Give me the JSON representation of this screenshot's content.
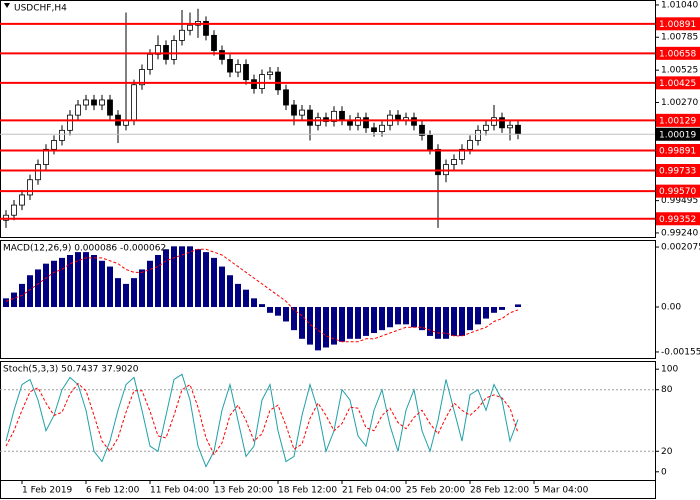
{
  "chart_data": [
    {
      "type": "candlestick",
      "title": "USDCHF,H4",
      "xlim": [
        -0.75,
        81.125
      ],
      "ylim": [
        0.99208,
        1.01079
      ],
      "yticks": [
        {
          "value": 1.0104,
          "label": "1.01040"
        },
        1.00785,
        1.00525,
        {
          "value": 1.0027,
          "label": "1.00270"
        },
        0.99495,
        {
          "value": 0.9924,
          "label": "0.99240"
        }
      ],
      "levels": [
        1.00891,
        1.00658,
        1.00425,
        1.00129,
        0.99891,
        0.99733,
        {
          "value": 0.9957,
          "label": "0.99570"
        },
        0.99352
      ],
      "level_color": "#ff0000",
      "current_price": 1.00019,
      "up_color": "#ffffff",
      "down_color": "#000000",
      "candles": [
        [
          0.9934,
          0.9942,
          0.9928,
          0.9938
        ],
        [
          0.9938,
          0.995,
          0.9934,
          0.9946
        ],
        [
          0.9946,
          0.9958,
          0.9942,
          0.9954
        ],
        [
          0.9954,
          0.997,
          0.995,
          0.9966
        ],
        [
          0.9966,
          0.9982,
          0.9962,
          0.9978
        ],
        [
          0.9978,
          0.9994,
          0.9974,
          0.999
        ],
        [
          0.999,
          1.0001,
          0.9986,
          0.9997
        ],
        [
          0.9997,
          1.0009,
          0.9993,
          1.0005
        ],
        [
          1.0005,
          1.0021,
          1.0001,
          1.0017
        ],
        [
          1.0017,
          1.0029,
          1.0013,
          1.0025
        ],
        [
          1.0025,
          1.0033,
          1.0021,
          1.0029
        ],
        [
          1.0029,
          1.0033,
          1.0021,
          1.0025
        ],
        [
          1.0025,
          1.0033,
          1.0021,
          1.0029
        ],
        [
          1.0029,
          1.0033,
          1.0013,
          1.0017
        ],
        [
          1.0017,
          1.0021,
          0.9995,
          1.0009
        ],
        [
          1.0009,
          1.0098,
          1.0005,
          1.0013
        ],
        [
          1.0013,
          1.0045,
          1.0009,
          1.0041
        ],
        [
          1.0041,
          1.0057,
          1.0037,
          1.0053
        ],
        [
          1.0053,
          1.0069,
          1.0049,
          1.0065
        ],
        [
          1.0065,
          1.008,
          1.0061,
          1.0072
        ],
        [
          1.0072,
          1.0076,
          1.0057,
          1.0061
        ],
        [
          1.0061,
          1.008,
          1.0057,
          1.0076
        ],
        [
          1.0076,
          1.01,
          1.0072,
          1.0084
        ],
        [
          1.0084,
          1.0098,
          1.008,
          1.0088
        ],
        [
          1.0088,
          1.0101,
          1.0078,
          1.0091
        ],
        [
          1.0091,
          1.0095,
          1.0076,
          1.008
        ],
        [
          1.008,
          1.0084,
          1.0064,
          1.0068
        ],
        [
          1.0068,
          1.0072,
          1.0057,
          1.0061
        ],
        [
          1.0061,
          1.0065,
          1.0047,
          1.0051
        ],
        [
          1.0051,
          1.0061,
          1.0047,
          1.0057
        ],
        [
          1.0057,
          1.0061,
          1.0041,
          1.0045
        ],
        [
          1.0045,
          1.0049,
          1.0034,
          1.0038
        ],
        [
          1.0038,
          1.0053,
          1.0034,
          1.0049
        ],
        [
          1.0049,
          1.0055,
          1.0045,
          1.0051
        ],
        [
          1.0051,
          1.0055,
          1.0033,
          1.0037
        ],
        [
          1.0037,
          1.0041,
          1.0021,
          1.0025
        ],
        [
          1.0025,
          1.0029,
          1.0009,
          1.0017
        ],
        [
          1.0017,
          1.0025,
          1.0013,
          1.0021
        ],
        [
          1.0021,
          1.0025,
          0.9997,
          1.0009
        ],
        [
          1.0009,
          1.0019,
          1.0005,
          1.0015
        ],
        [
          1.0015,
          1.0019,
          1.0008,
          1.0012
        ],
        [
          1.0012,
          1.0024,
          1.0008,
          1.002
        ],
        [
          1.002,
          1.0024,
          1.0009,
          1.0013
        ],
        [
          1.0013,
          1.0017,
          1.0005,
          1.0009
        ],
        [
          1.0009,
          1.0019,
          1.0005,
          1.0015
        ],
        [
          1.0015,
          1.0019,
          1.0003,
          1.0007
        ],
        [
          1.0007,
          1.0011,
          1.0,
          1.0004
        ],
        [
          1.0004,
          1.0013,
          1.0,
          1.0009
        ],
        [
          1.0009,
          1.0021,
          1.0005,
          1.0017
        ],
        [
          1.0017,
          1.0021,
          1.0009,
          1.0013
        ],
        [
          1.0013,
          1.0019,
          1.0009,
          1.0015
        ],
        [
          1.0015,
          1.0019,
          1.0005,
          1.0009
        ],
        [
          1.0009,
          1.0013,
          0.9997,
          1.0001
        ],
        [
          1.0001,
          1.0005,
          0.9986,
          0.999
        ],
        [
          0.999,
          0.9994,
          0.9928,
          0.997
        ],
        [
          0.997,
          0.9982,
          0.9964,
          0.9978
        ],
        [
          0.9978,
          0.9986,
          0.9974,
          0.9982
        ],
        [
          0.9982,
          0.9994,
          0.9978,
          0.999
        ],
        [
          0.999,
          1.0001,
          0.9986,
          0.9997
        ],
        [
          0.9997,
          1.0009,
          0.9993,
          1.0005
        ],
        [
          1.0005,
          1.0013,
          1.0001,
          1.0009
        ],
        [
          1.0009,
          1.0025,
          1.0005,
          1.0015
        ],
        [
          1.0015,
          1.0019,
          1.0003,
          1.0007
        ],
        [
          1.0007,
          1.0013,
          0.9997,
          1.0009
        ],
        [
          1.0009,
          1.0013,
          0.9998,
          1.0002
        ]
      ]
    },
    {
      "type": "macd",
      "title": "MACD(12,26,9) 0.000086 -0.000062",
      "xlim": [
        -0.75,
        81.125
      ],
      "ylim": [
        -0.001764,
        0.002319
      ],
      "yticks": [
        0.002075,
        {
          "value": 0,
          "label": "0.00"
        },
        -0.001555
      ],
      "series": [
        {
          "name": "MACD",
          "color": "#000080",
          "values": [
            0.0003,
            0.0005,
            0.0008,
            0.0011,
            0.0013,
            0.0015,
            0.0016,
            0.0017,
            0.0018,
            0.0019,
            0.0019,
            0.0018,
            0.0016,
            0.0014,
            0.001,
            0.0008,
            0.001,
            0.0013,
            0.0016,
            0.0018,
            0.002,
            0.0021,
            0.0021,
            0.0021,
            0.002,
            0.0019,
            0.0017,
            0.0014,
            0.0011,
            0.0008,
            0.0006,
            0.0003,
            0.0001,
            -0.0002,
            -0.0003,
            -0.0005,
            -0.0008,
            -0.0011,
            -0.0013,
            -0.0015,
            -0.0014,
            -0.0013,
            -0.0012,
            -0.0011,
            -0.0011,
            -0.001,
            -0.0009,
            -0.0008,
            -0.0007,
            -0.0006,
            -0.0006,
            -0.0007,
            -0.0008,
            -0.001,
            -0.0011,
            -0.0011,
            -0.001,
            -0.001,
            -0.0008,
            -0.0006,
            -0.0004,
            -0.0002,
            -0.0001,
            0.0,
            9e-05
          ]
        },
        {
          "name": "Signal",
          "color": "#ff0000",
          "values": [
            0.0002,
            0.0003,
            0.0004,
            0.0006,
            0.0008,
            0.001,
            0.0012,
            0.0013,
            0.0015,
            0.0016,
            0.0017,
            0.0017,
            0.0017,
            0.0016,
            0.0015,
            0.0013,
            0.0012,
            0.0012,
            0.0013,
            0.0014,
            0.0016,
            0.0017,
            0.0018,
            0.0019,
            0.002,
            0.002,
            0.0019,
            0.0018,
            0.0016,
            0.0014,
            0.0012,
            0.001,
            0.0008,
            0.0006,
            0.0004,
            0.0002,
            -0.0001,
            -0.0003,
            -0.0006,
            -0.0008,
            -0.001,
            -0.0011,
            -0.0012,
            -0.0012,
            -0.0012,
            -0.0011,
            -0.0011,
            -0.001,
            -0.0009,
            -0.0008,
            -0.0007,
            -0.0007,
            -0.0007,
            -0.0008,
            -0.0009,
            -0.0009,
            -0.001,
            -0.001,
            -0.0009,
            -0.0008,
            -0.0007,
            -0.0005,
            -0.0004,
            -0.0002,
            -0.0001
          ]
        }
      ]
    },
    {
      "type": "line",
      "title": "Stoch(5,3,3) 50.7437 37.9020",
      "xlim": [
        -0.75,
        81.125
      ],
      "xticks": [
        {
          "value": 2,
          "label": "1 Feb 2019"
        },
        {
          "value": 10,
          "label": "6 Feb 12:00"
        },
        {
          "value": 18,
          "label": "11 Feb 04:00"
        },
        {
          "value": 26,
          "label": "13 Feb 20:00"
        },
        {
          "value": 34,
          "label": "18 Feb 12:00"
        },
        {
          "value": 42,
          "label": "21 Feb 04:00"
        },
        {
          "value": 50,
          "label": "25 Feb 20:00"
        },
        {
          "value": 58,
          "label": "28 Feb 12:00"
        },
        {
          "value": 66,
          "label": "5 Mar 04:00"
        }
      ],
      "ylim": [
        -8,
        108
      ],
      "yticks": [
        100,
        80,
        20,
        0
      ],
      "levels": [
        80,
        20
      ],
      "series": [
        {
          "name": "Main",
          "color": "#20a0a8",
          "values": [
            30,
            60,
            85,
            90,
            70,
            40,
            55,
            80,
            92,
            85,
            60,
            20,
            10,
            30,
            60,
            85,
            92,
            60,
            25,
            20,
            55,
            90,
            95,
            70,
            25,
            5,
            20,
            60,
            85,
            50,
            15,
            25,
            70,
            85,
            40,
            10,
            15,
            55,
            85,
            60,
            20,
            40,
            80,
            70,
            35,
            25,
            60,
            80,
            45,
            20,
            60,
            80,
            40,
            20,
            50,
            90,
            60,
            30,
            75,
            80,
            60,
            85,
            70,
            30,
            51
          ]
        },
        {
          "name": "Signal",
          "color": "#ff0000",
          "values": [
            25,
            40,
            60,
            78,
            82,
            67,
            55,
            58,
            76,
            86,
            79,
            55,
            30,
            20,
            33,
            58,
            79,
            79,
            59,
            35,
            33,
            55,
            80,
            85,
            63,
            33,
            17,
            28,
            55,
            65,
            50,
            30,
            37,
            60,
            65,
            45,
            22,
            27,
            52,
            67,
            55,
            40,
            47,
            63,
            62,
            43,
            40,
            55,
            62,
            48,
            42,
            53,
            60,
            47,
            37,
            53,
            67,
            60,
            55,
            62,
            72,
            75,
            72,
            62,
            38
          ]
        }
      ]
    }
  ]
}
